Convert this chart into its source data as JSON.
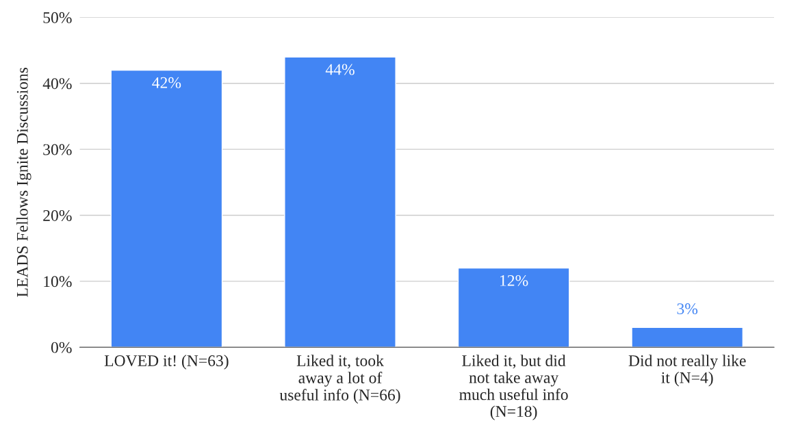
{
  "chart_data": {
    "type": "bar",
    "ylabel": "LEADS Fellows Ignite Discussions",
    "categories": [
      "LOVED it! (N=63)",
      "Liked it, took\naway a lot of\nuseful info (N=66)",
      "Liked it, but did\nnot take away\nmuch useful info\n(N=18)",
      "Did not really like\nit (N=4)"
    ],
    "values": [
      42,
      44,
      12,
      3
    ],
    "value_labels": [
      "42%",
      "44%",
      "12%",
      "3%"
    ],
    "color": "#4285f4",
    "ylim": [
      0,
      50
    ],
    "yticks": [
      {
        "value": 0,
        "label": "0%"
      },
      {
        "value": 10,
        "label": "10%"
      },
      {
        "value": 20,
        "label": "20%"
      },
      {
        "value": 30,
        "label": "30%"
      },
      {
        "value": 40,
        "label": "40%"
      },
      {
        "value": 50,
        "label": "50%"
      }
    ],
    "grid": "y",
    "legend": false
  }
}
